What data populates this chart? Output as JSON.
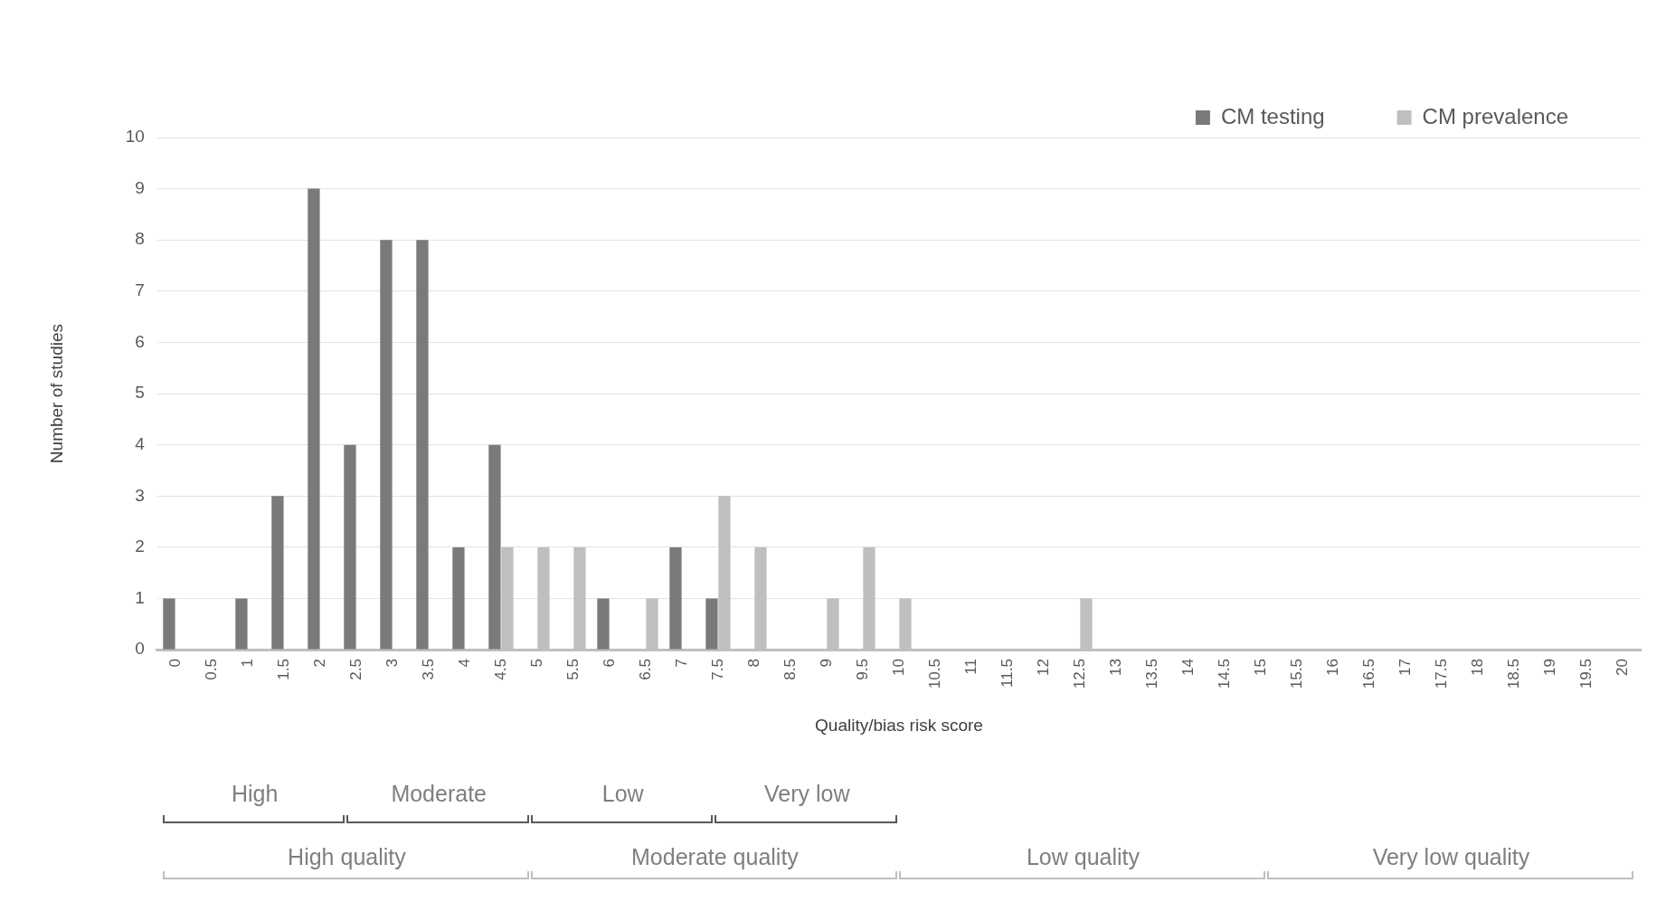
{
  "chart_data": {
    "type": "bar",
    "xlabel": "Quality/bias risk score",
    "ylabel": "Number of studies",
    "categories": [
      "0",
      "0.5",
      "1",
      "1.5",
      "2",
      "2.5",
      "3",
      "3.5",
      "4",
      "4.5",
      "5",
      "5.5",
      "6",
      "6.5",
      "7",
      "7.5",
      "8",
      "8.5",
      "9",
      "9.5",
      "10",
      "10.5",
      "11",
      "11.5",
      "12",
      "12.5",
      "13",
      "13.5",
      "14",
      "14.5",
      "15",
      "15.5",
      "16",
      "16.5",
      "17",
      "17.5",
      "18",
      "18.5",
      "19",
      "19.5",
      "20"
    ],
    "series": [
      {
        "name": "CM testing",
        "color": "#7a7a7a",
        "values": [
          1,
          0,
          1,
          3,
          9,
          4,
          8,
          8,
          2,
          4,
          0,
          0,
          1,
          0,
          2,
          1,
          0,
          0,
          0,
          0,
          0,
          0,
          0,
          0,
          0,
          0,
          0,
          0,
          0,
          0,
          0,
          0,
          0,
          0,
          0,
          0,
          0,
          0,
          0,
          0,
          0
        ]
      },
      {
        "name": "CM prevalence",
        "color": "#bfbfbf",
        "values": [
          0,
          0,
          0,
          0,
          0,
          0,
          0,
          0,
          0,
          2,
          2,
          2,
          0,
          1,
          0,
          3,
          2,
          0,
          1,
          2,
          1,
          0,
          0,
          0,
          0,
          1,
          0,
          0,
          0,
          0,
          0,
          0,
          0,
          0,
          0,
          0,
          0,
          0,
          0,
          0,
          0
        ]
      }
    ],
    "ylim": [
      0,
      10
    ],
    "yticks": [
      0,
      1,
      2,
      3,
      4,
      5,
      6,
      7,
      8,
      9,
      10
    ],
    "grid": "y",
    "legend": "top right",
    "annotations": [
      "High",
      "Moderate",
      "Low",
      "Very low",
      "High quality",
      "Moderate quality",
      "Low quality",
      "Very low quality"
    ]
  }
}
